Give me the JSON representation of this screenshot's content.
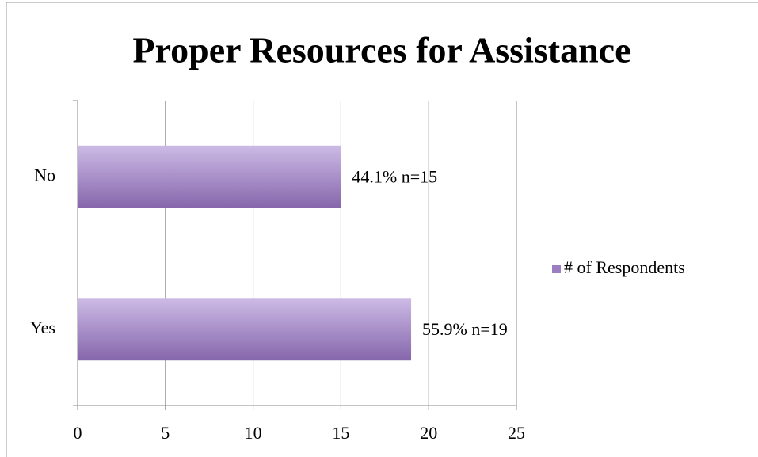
{
  "chart_data": {
    "type": "bar",
    "orientation": "horizontal",
    "title": "Proper Resources for Assistance",
    "categories": [
      "Yes",
      "No"
    ],
    "series": [
      {
        "name": "# of Respondents",
        "color": "#9b7fc2",
        "values": [
          19,
          15
        ],
        "value_labels": [
          "55.9% n=19",
          "44.1% n=15"
        ]
      }
    ],
    "xlim": [
      0,
      25
    ],
    "xticks": [
      0,
      5,
      10,
      15,
      20,
      25
    ],
    "grid": true,
    "legend": "right"
  }
}
